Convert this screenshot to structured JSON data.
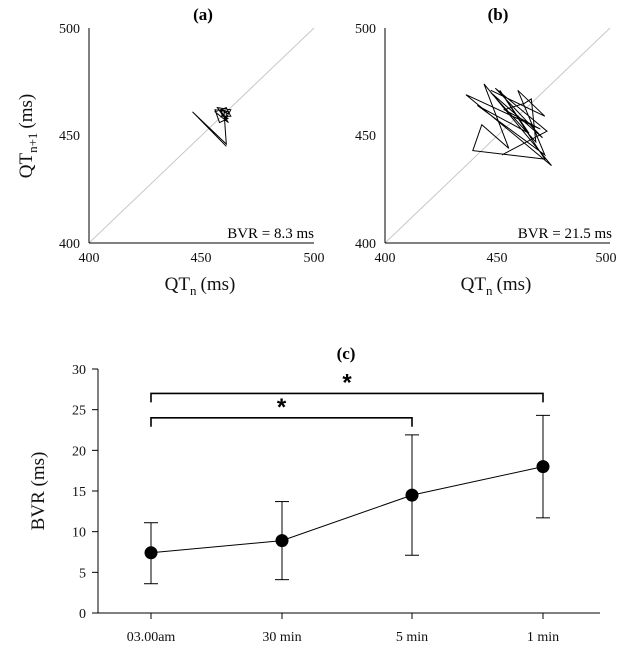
{
  "chart_data": [
    {
      "type": "line",
      "title": "(a)",
      "xlabel": "QT",
      "xlabel_sub": "n",
      "xlabel_unit": "(ms)",
      "ylabel": "QT",
      "ylabel_sub": "n+1",
      "ylabel_unit": "(ms)",
      "xlim": [
        400,
        500
      ],
      "ylim": [
        400,
        500
      ],
      "xticks": [
        "400",
        "450",
        "500"
      ],
      "yticks": [
        "400",
        "450",
        "500"
      ],
      "annotation": "BVR = 8.3 ms",
      "identity_line_color": "#c8c8c8",
      "x": [
        462,
        458,
        456,
        462,
        461,
        461,
        458,
        462,
        456,
        461,
        463,
        459,
        459,
        462,
        461,
        457,
        463,
        462,
        460,
        461,
        446,
        461
      ],
      "y": [
        458,
        456,
        462,
        461,
        461,
        458,
        462,
        456,
        461,
        463,
        459,
        459,
        462,
        461,
        457,
        463,
        462,
        460,
        461,
        446,
        461,
        445
      ]
    },
    {
      "type": "line",
      "title": "(b)",
      "xlabel": "QT",
      "xlabel_sub": "n",
      "xlabel_unit": "(ms)",
      "ylabel": "",
      "xlim": [
        400,
        500
      ],
      "ylim": [
        400,
        500
      ],
      "xticks": [
        "400",
        "450",
        "500"
      ],
      "yticks": [
        "400",
        "450",
        "500"
      ],
      "annotation": "BVR = 21.5 ms",
      "identity_line_color": "#c8c8c8",
      "x": [
        447,
        471,
        459,
        471,
        441,
        464,
        451,
        471,
        439,
        443,
        455,
        444,
        474,
        436,
        469,
        453,
        462,
        465,
        467,
        447,
        470,
        449,
        472,
        452
      ],
      "y": [
        471,
        459,
        471,
        441,
        464,
        451,
        471,
        439,
        443,
        455,
        444,
        474,
        436,
        469,
        453,
        462,
        465,
        467,
        447,
        470,
        449,
        472,
        452,
        441
      ]
    },
    {
      "type": "line",
      "title": "(c)",
      "xlabel": "",
      "ylabel": "BVR (ms)",
      "categories": [
        "03.00am",
        "30 min",
        "5 min",
        "1 min"
      ],
      "values": [
        7.4,
        8.9,
        14.5,
        18.0
      ],
      "error_upper": [
        11.1,
        13.7,
        21.9,
        24.3
      ],
      "error_lower": [
        3.6,
        4.1,
        7.1,
        11.7
      ],
      "ylim": [
        0,
        30
      ],
      "yticks": [
        "0",
        "5",
        "10",
        "15",
        "20",
        "25",
        "30"
      ],
      "significance": [
        {
          "from": 0,
          "to": 2,
          "label": "*",
          "level": 24
        },
        {
          "from": 0,
          "to": 3,
          "label": "*",
          "level": 27
        }
      ]
    }
  ]
}
